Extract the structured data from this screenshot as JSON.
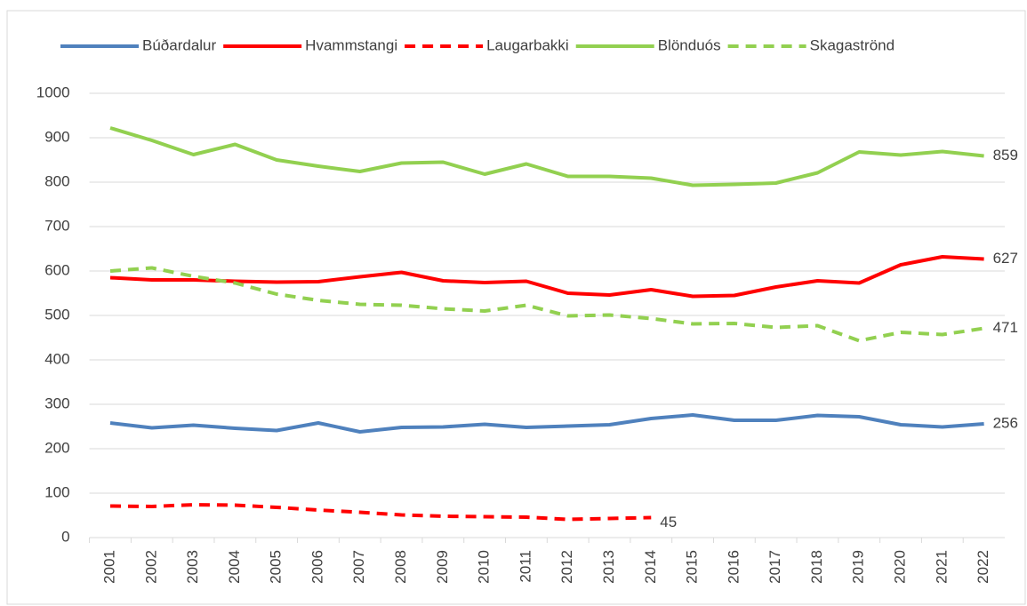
{
  "chart_data": {
    "type": "line",
    "categories": [
      "2001",
      "2002",
      "2003",
      "2004",
      "2005",
      "2006",
      "2007",
      "2008",
      "2009",
      "2010",
      "2011",
      "2012",
      "2013",
      "2014",
      "2015",
      "2016",
      "2017",
      "2018",
      "2019",
      "2020",
      "2021",
      "2022"
    ],
    "series": [
      {
        "name": "Búðardalur",
        "color": "#4f81bd",
        "dashed": false,
        "values": [
          258,
          247,
          253,
          246,
          241,
          258,
          238,
          248,
          249,
          255,
          248,
          251,
          254,
          268,
          276,
          264,
          264,
          275,
          272,
          254,
          249,
          256
        ]
      },
      {
        "name": "Hvammstangi",
        "color": "#ff0000",
        "dashed": false,
        "values": [
          585,
          580,
          580,
          577,
          575,
          576,
          587,
          597,
          578,
          574,
          577,
          550,
          546,
          558,
          543,
          545,
          564,
          578,
          573,
          614,
          632,
          627
        ]
      },
      {
        "name": "Laugarbakki",
        "color": "#ff0000",
        "dashed": true,
        "values": [
          71,
          70,
          74,
          73,
          68,
          62,
          57,
          51,
          48,
          47,
          46,
          41,
          43,
          45,
          null,
          null,
          null,
          null,
          null,
          null,
          null,
          null
        ]
      },
      {
        "name": "Blönduós",
        "color": "#92d050",
        "dashed": false,
        "values": [
          922,
          894,
          862,
          885,
          850,
          836,
          824,
          843,
          845,
          818,
          841,
          813,
          813,
          809,
          793,
          795,
          798,
          821,
          868,
          861,
          869,
          859
        ]
      },
      {
        "name": "Skagaströnd",
        "color": "#92d050",
        "dashed": true,
        "values": [
          600,
          607,
          588,
          573,
          548,
          534,
          525,
          523,
          515,
          510,
          523,
          499,
          501,
          493,
          481,
          482,
          473,
          477,
          443,
          462,
          457,
          471
        ]
      }
    ],
    "ylim": [
      0,
      1000
    ],
    "yticks": [
      0,
      100,
      200,
      300,
      400,
      500,
      600,
      700,
      800,
      900,
      1000
    ],
    "grid": true,
    "legend": "top"
  }
}
